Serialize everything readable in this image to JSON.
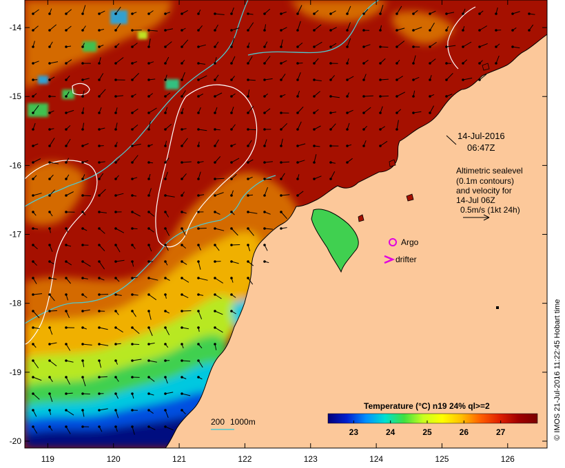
{
  "map": {
    "timestamp_date": "14-Jul-2016",
    "timestamp_time": "06:47Z",
    "altimetry_note": [
      "Altimetric sealevel",
      "(0.1m contours)",
      "and velocity for",
      "14-Jul 06Z",
      "0.5m/s (1kt 24h)"
    ],
    "legend": {
      "argo_label": "Argo",
      "drifter_label": "drifter",
      "argo_color": "#e000e0",
      "drifter_color": "#e000e0"
    },
    "depth_legend": {
      "label_200": "200",
      "label_1000": "1000m",
      "line_color": "#4fc9d0"
    },
    "credit": "© IMOS 21-Jul-2016 11:22:45 Hobart time",
    "colorbar": {
      "title": "Temperature (°C) n19 24% ql>=2",
      "min": 22.3,
      "max": 28.0,
      "tick_labels": [
        "23",
        "24",
        "25",
        "26",
        "27"
      ],
      "ticks": [
        23,
        24,
        25,
        26,
        27
      ],
      "stops": [
        "#00007a",
        "#0020d0",
        "#0090ff",
        "#00e0d0",
        "#40e040",
        "#c8ff20",
        "#ffff00",
        "#ffc000",
        "#ff6000",
        "#e02000",
        "#a00000",
        "#7a0000"
      ]
    },
    "axes": {
      "lon_ticks": [
        119,
        120,
        121,
        122,
        123,
        124,
        125,
        126
      ],
      "lon_labels": [
        "119",
        "120",
        "121",
        "122",
        "123",
        "124",
        "125",
        "126"
      ],
      "lat_ticks": [
        -14,
        -15,
        -16,
        -17,
        -18,
        -19,
        -20
      ],
      "lat_labels": [
        "-14",
        "-15",
        "-16",
        "-17",
        "-18",
        "-19",
        "-20"
      ],
      "lon_range": [
        118.65,
        126.6
      ],
      "lat_range": [
        -13.6,
        -20.1
      ]
    },
    "colors": {
      "land": "#fcc89a",
      "coast": "#000000",
      "sealevel_contour": "#ffffff",
      "depth_contour": "#4fc9d0",
      "warm_sea": "#a51000"
    }
  }
}
